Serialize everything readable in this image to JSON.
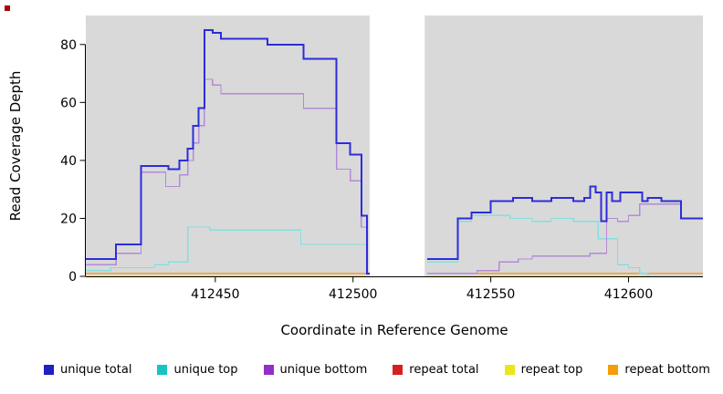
{
  "chart_data": {
    "type": "line",
    "style": "step",
    "title": "",
    "xlabel": "Coordinate in Reference Genome",
    "ylabel": "Read Coverage Depth",
    "xlim": [
      412403,
      412627
    ],
    "ylim": [
      0,
      90
    ],
    "x_ticks": [
      412450,
      412500,
      412550,
      412600
    ],
    "y_ticks": [
      0,
      20,
      40,
      60,
      80
    ],
    "grid": false,
    "panel_bg": "#d9d9d9",
    "masked_region": {
      "start": 412506,
      "end": 412526
    },
    "legend_position": "bottom",
    "series": [
      {
        "name": "repeat total",
        "color": "#cc2020",
        "width": 1.2,
        "segments": [
          [
            [
              412403,
              1
            ],
            [
              412506,
              1
            ]
          ],
          [
            [
              412527,
              1
            ],
            [
              412627,
              1
            ]
          ]
        ]
      },
      {
        "name": "repeat top",
        "color": "#e6e600",
        "width": 1.2,
        "segments": [
          [
            [
              412403,
              0
            ],
            [
              412506,
              0
            ]
          ],
          [
            [
              412527,
              0
            ],
            [
              412627,
              0
            ]
          ]
        ]
      },
      {
        "name": "repeat bottom",
        "color": "#ff9d1c",
        "width": 1.5,
        "segments": [
          [
            [
              412403,
              1
            ],
            [
              412506,
              1
            ]
          ],
          [
            [
              412527,
              1
            ],
            [
              412627,
              1
            ]
          ]
        ]
      },
      {
        "name": "unique top",
        "color": "#85dede",
        "width": 1.3,
        "segments": [
          [
            [
              412403,
              2
            ],
            [
              412412,
              3
            ],
            [
              412428,
              4
            ],
            [
              412433,
              5
            ],
            [
              412440,
              17
            ],
            [
              412448,
              16
            ],
            [
              412481,
              11
            ],
            [
              412503,
              11
            ],
            [
              412505,
              1
            ],
            [
              412506,
              1
            ]
          ],
          [
            [
              412527,
              5
            ],
            [
              412538,
              19
            ],
            [
              412543,
              21
            ],
            [
              412550,
              21
            ],
            [
              412557,
              20
            ],
            [
              412565,
              19
            ],
            [
              412572,
              20
            ],
            [
              412580,
              19
            ],
            [
              412587,
              19
            ],
            [
              412589,
              13
            ],
            [
              412594,
              13
            ],
            [
              412596,
              4
            ],
            [
              412600,
              3
            ],
            [
              412604,
              1
            ],
            [
              412607,
              0
            ],
            [
              412627,
              0
            ]
          ]
        ]
      },
      {
        "name": "unique bottom",
        "color": "#b48ad6",
        "width": 1.3,
        "segments": [
          [
            [
              412403,
              4
            ],
            [
              412414,
              8
            ],
            [
              412423,
              36
            ],
            [
              412432,
              31
            ],
            [
              412437,
              35
            ],
            [
              412440,
              40
            ],
            [
              412442,
              46
            ],
            [
              412444,
              52
            ],
            [
              412446,
              68
            ],
            [
              412449,
              66
            ],
            [
              412452,
              63
            ],
            [
              412482,
              58
            ],
            [
              412494,
              37
            ],
            [
              412499,
              33
            ],
            [
              412503,
              17
            ],
            [
              412505,
              1
            ],
            [
              412506,
              1
            ]
          ],
          [
            [
              412527,
              1
            ],
            [
              412545,
              2
            ],
            [
              412553,
              5
            ],
            [
              412560,
              6
            ],
            [
              412565,
              7
            ],
            [
              412586,
              8
            ],
            [
              412592,
              20
            ],
            [
              412596,
              19
            ],
            [
              412600,
              21
            ],
            [
              412604,
              25
            ],
            [
              412612,
              25
            ],
            [
              412619,
              20
            ],
            [
              412627,
              20
            ]
          ]
        ]
      },
      {
        "name": "unique total",
        "color": "#2d2dd9",
        "width": 2,
        "segments": [
          [
            [
              412403,
              6
            ],
            [
              412414,
              11
            ],
            [
              412423,
              38
            ],
            [
              412433,
              37
            ],
            [
              412437,
              40
            ],
            [
              412440,
              44
            ],
            [
              412442,
              52
            ],
            [
              412444,
              58
            ],
            [
              412446,
              85
            ],
            [
              412449,
              84
            ],
            [
              412452,
              82
            ],
            [
              412469,
              80
            ],
            [
              412482,
              75
            ],
            [
              412494,
              46
            ],
            [
              412499,
              42
            ],
            [
              412503,
              21
            ],
            [
              412505,
              1
            ],
            [
              412506,
              1
            ]
          ],
          [
            [
              412527,
              6
            ],
            [
              412538,
              20
            ],
            [
              412543,
              22
            ],
            [
              412550,
              26
            ],
            [
              412558,
              27
            ],
            [
              412565,
              26
            ],
            [
              412572,
              27
            ],
            [
              412580,
              26
            ],
            [
              412584,
              27
            ],
            [
              412586,
              31
            ],
            [
              412588,
              29
            ],
            [
              412590,
              19
            ],
            [
              412592,
              29
            ],
            [
              412594,
              26
            ],
            [
              412597,
              29
            ],
            [
              412605,
              26
            ],
            [
              412607,
              27
            ],
            [
              412612,
              26
            ],
            [
              412619,
              20
            ],
            [
              412627,
              20
            ]
          ]
        ]
      }
    ],
    "legend": [
      {
        "label": "unique total",
        "color": "#1f1fc4"
      },
      {
        "label": "unique top",
        "color": "#17c3c3"
      },
      {
        "label": "unique bottom",
        "color": "#9130c9"
      },
      {
        "label": "repeat total",
        "color": "#d62020"
      },
      {
        "label": "repeat top",
        "color": "#ece619"
      },
      {
        "label": "repeat bottom",
        "color": "#f59d0a"
      }
    ]
  }
}
